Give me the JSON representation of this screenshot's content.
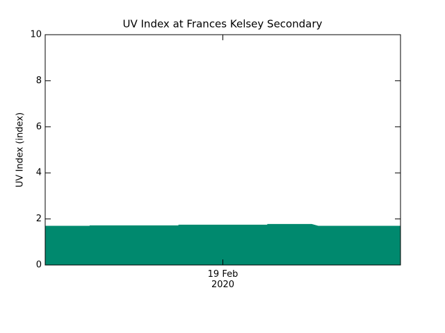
{
  "chart_data": {
    "type": "area",
    "title": "UV Index at Frances Kelsey Secondary",
    "y_label": "UV Index (index)",
    "x": [
      0,
      1,
      1,
      3,
      3,
      5,
      5,
      6,
      6.15,
      8
    ],
    "series": [
      {
        "color": "#00896e",
        "values": [
          1.7,
          1.7,
          1.72,
          1.72,
          1.75,
          1.75,
          1.78,
          1.78,
          1.7,
          1.7
        ]
      }
    ],
    "xlim": [
      0,
      8
    ],
    "xticks": [
      {
        "value": 4,
        "label": "19 Feb\n2020"
      }
    ],
    "ylim": [
      0,
      10
    ],
    "yticks": [
      0,
      2,
      4,
      6,
      8,
      10
    ],
    "grid": false
  }
}
